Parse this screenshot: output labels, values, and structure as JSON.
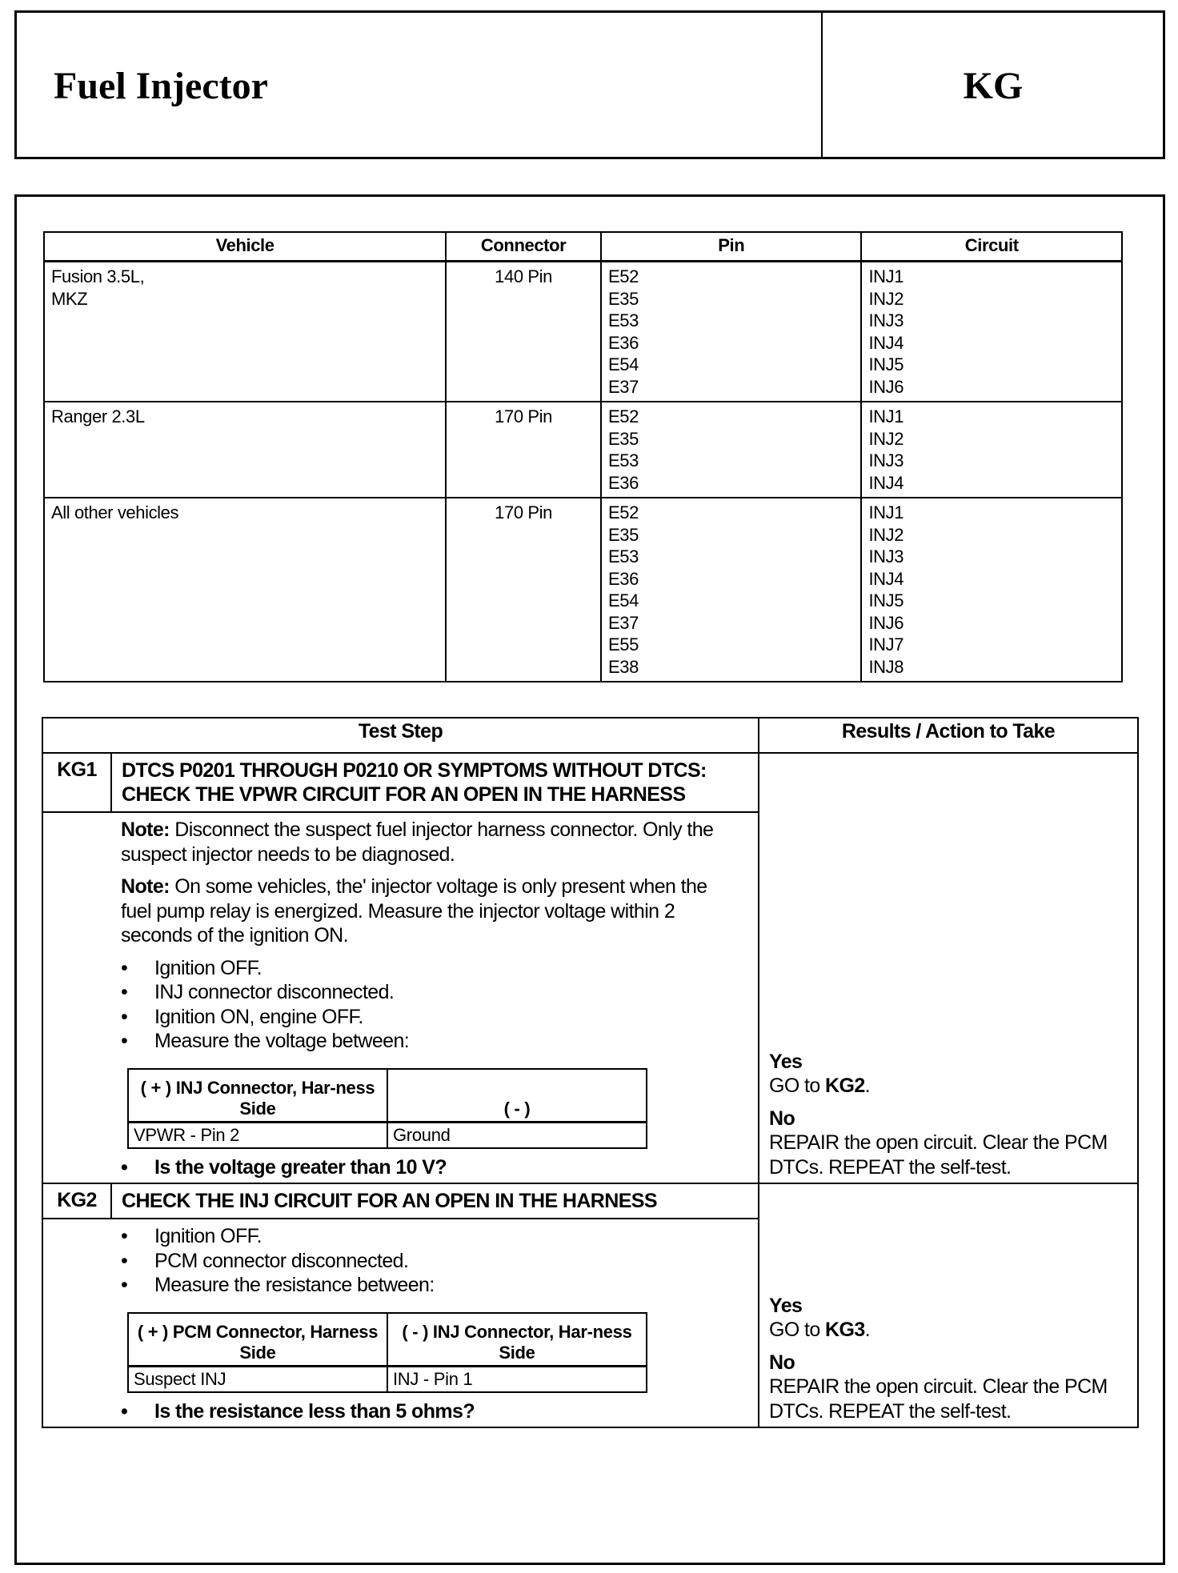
{
  "header": {
    "title": "Fuel Injector",
    "code": "KG"
  },
  "pin_table": {
    "columns": [
      "Vehicle",
      "Connector",
      "Pin",
      "Circuit"
    ],
    "rows": [
      {
        "vehicle": [
          "Fusion 3.5L,",
          "MKZ"
        ],
        "connector": "140 Pin",
        "pins": [
          "E52",
          "E35",
          "E53",
          "E36",
          "E54",
          "E37"
        ],
        "circuits": [
          "INJ1",
          "INJ2",
          "INJ3",
          "INJ4",
          "INJ5",
          "INJ6"
        ]
      },
      {
        "vehicle": [
          "Ranger 2.3L"
        ],
        "connector": "170 Pin",
        "pins": [
          "E52",
          "E35",
          "E53",
          "E36"
        ],
        "circuits": [
          "INJ1",
          "INJ2",
          "INJ3",
          "INJ4"
        ]
      },
      {
        "vehicle": [
          "All other vehicles"
        ],
        "connector": "170 Pin",
        "pins": [
          "E52",
          "E35",
          "E53",
          "E36",
          "E54",
          "E37",
          "E55",
          "E38"
        ],
        "circuits": [
          "INJ1",
          "INJ2",
          "INJ3",
          "INJ4",
          "INJ5",
          "INJ6",
          "INJ7",
          "INJ8"
        ]
      }
    ]
  },
  "test_table": {
    "columns": [
      "Test Step",
      "Results / Action to Take"
    ],
    "steps": [
      {
        "id": "KG1",
        "title": "DTCS P0201 THROUGH P0210 OR SYMPTOMS WITHOUT DTCS: CHECK THE VPWR CIRCUIT FOR AN OPEN IN THE HARNESS",
        "notes": [
          {
            "label": "Note:",
            "text": " Disconnect the suspect fuel injector harness connector. Only the suspect injector needs to be diagnosed."
          },
          {
            "label": "Note:",
            "text": " On some vehicles, the' injector voltage is only present when the fuel pump relay is energized. Measure the injector voltage within 2 seconds of the ignition ON."
          }
        ],
        "bullets": [
          "Ignition OFF.",
          "INJ connector disconnected.",
          "Ignition ON, engine OFF.",
          "Measure the voltage between:"
        ],
        "measure": {
          "headers": [
            "( + ) INJ Connector, Har-ness Side",
            "( - )"
          ],
          "values": [
            "VPWR - Pin 2",
            "Ground"
          ]
        },
        "question": "Is the voltage greater than 10 V?",
        "yes_label": "Yes",
        "yes_text": "GO to ",
        "yes_target": "KG2",
        "yes_end": ".",
        "no_label": "No",
        "no_text": "REPAIR the open circuit. Clear the PCM DTCs. REPEAT the self-test."
      },
      {
        "id": "KG2",
        "title": "CHECK THE INJ CIRCUIT FOR AN OPEN IN THE HARNESS",
        "bullets": [
          "Ignition OFF.",
          "PCM connector disconnected.",
          "Measure the resistance between:"
        ],
        "measure": {
          "headers": [
            "( + ) PCM Connector, Harness Side",
            "( - ) INJ Connector, Har-ness Side"
          ],
          "values": [
            "Suspect INJ",
            "INJ - Pin 1"
          ]
        },
        "question": "Is the resistance less than 5 ohms?",
        "yes_label": "Yes",
        "yes_text": "GO to ",
        "yes_target": "KG3",
        "yes_end": ".",
        "no_label": "No",
        "no_text": "REPAIR the open circuit. Clear the PCM DTCs. REPEAT the self-test."
      }
    ]
  }
}
